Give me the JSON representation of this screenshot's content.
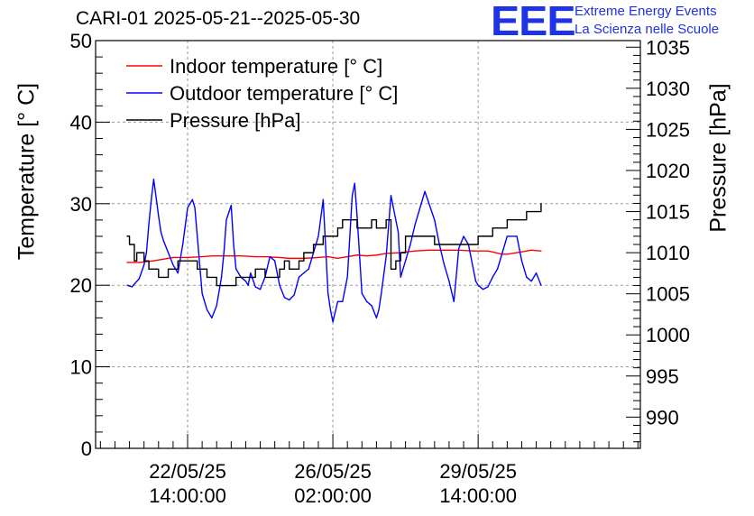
{
  "header": {
    "title": "CARI-01 2025-05-21--2025-05-30",
    "logo_text": "EEE",
    "brand_line1": "Extreme Energy Events",
    "brand_line2": "La Scienza nelle Scuole"
  },
  "colors": {
    "indoor": "#ff0000",
    "outdoor": "#0000ff",
    "pressure": "#000000",
    "brand": "#1e32e6",
    "grid": "#999999"
  },
  "chart_data": {
    "type": "line",
    "title": "CARI-01 2025-05-21--2025-05-30",
    "ylabel": "Temperature [° C]",
    "y2label": "Pressure [hPa]",
    "ylim": [
      0,
      50
    ],
    "y2lim": [
      986.2,
      1035.8
    ],
    "xlim_hours": [
      0,
      225
    ],
    "x_origin": "2025-05-21 00:00",
    "x_ticks": [
      {
        "hour": 38,
        "line1": "22/05/25",
        "line2": "14:00:00"
      },
      {
        "hour": 98,
        "line1": "26/05/25",
        "line2": "02:00:00"
      },
      {
        "hour": 158,
        "line1": "29/05/25",
        "line2": "14:00:00"
      }
    ],
    "y_ticks": [
      0,
      10,
      20,
      30,
      40,
      50
    ],
    "y2_ticks": [
      990,
      995,
      1000,
      1005,
      1010,
      1015,
      1020,
      1025,
      1030,
      1035
    ],
    "legend": {
      "position": "top-left",
      "entries": [
        "Indoor temperature [° C]",
        "Outdoor temperature [° C]",
        "Pressure [hPa]"
      ]
    },
    "series": [
      {
        "name": "Indoor temperature [° C]",
        "axis": "left",
        "x": [
          13,
          18,
          24,
          28,
          32,
          38,
          44,
          48,
          54,
          60,
          66,
          70,
          76,
          80,
          86,
          92,
          96,
          100,
          104,
          108,
          112,
          116,
          120,
          126,
          132,
          138,
          144,
          150,
          156,
          162,
          168,
          170,
          174,
          180,
          184
        ],
        "values": [
          22.8,
          22.8,
          23.0,
          23.2,
          23.4,
          23.4,
          23.5,
          23.6,
          23.6,
          23.6,
          23.5,
          23.5,
          23.4,
          23.3,
          23.3,
          23.4,
          23.5,
          23.3,
          23.5,
          23.7,
          23.6,
          23.7,
          23.9,
          24.0,
          24.2,
          24.3,
          24.3,
          24.3,
          24.2,
          24.2,
          23.8,
          23.8,
          24.0,
          24.3,
          24.2
        ]
      },
      {
        "name": "Outdoor temperature [° C]",
        "axis": "left",
        "x": [
          13,
          15,
          18,
          20,
          21,
          22,
          23,
          24,
          26,
          27,
          28,
          30,
          32,
          34,
          36,
          38,
          40,
          41,
          42,
          44,
          46,
          48,
          50,
          52,
          53,
          54,
          56,
          57,
          58,
          60,
          62,
          63,
          64,
          66,
          68,
          70,
          72,
          74,
          76,
          78,
          80,
          82,
          84,
          86,
          88,
          90,
          92,
          94,
          96,
          97,
          98,
          100,
          102,
          104,
          106,
          107,
          108,
          110,
          112,
          114,
          116,
          117,
          118,
          120,
          122,
          124,
          125,
          126,
          128,
          130,
          132,
          136,
          140,
          142,
          144,
          146,
          148,
          150,
          152,
          154,
          156,
          157,
          158,
          160,
          162,
          164,
          166,
          168,
          170,
          172,
          174,
          176,
          178,
          180,
          182,
          184
        ],
        "values": [
          20.0,
          19.8,
          20.8,
          22.5,
          24.0,
          27.5,
          30.5,
          33.0,
          28.5,
          26.5,
          25.5,
          24.0,
          22.5,
          21.5,
          25.0,
          29.5,
          30.5,
          29.5,
          26.0,
          19.0,
          17.0,
          16.0,
          17.5,
          21.0,
          24.0,
          28.0,
          29.8,
          25.0,
          22.0,
          21.0,
          20.5,
          20.0,
          21.5,
          19.8,
          19.5,
          21.0,
          23.5,
          23.0,
          20.0,
          18.5,
          18.2,
          18.8,
          21.0,
          21.5,
          22.0,
          24.0,
          26.0,
          30.5,
          19.0,
          17.0,
          15.5,
          18.0,
          18.0,
          21.0,
          31.0,
          32.5,
          28.5,
          19.0,
          18.0,
          17.5,
          16.0,
          17.0,
          19.0,
          23.5,
          31.0,
          28.0,
          26.5,
          21.0,
          23.0,
          25.0,
          27.5,
          31.5,
          28.0,
          25.0,
          22.5,
          20.5,
          18.0,
          24.5,
          26.0,
          25.0,
          22.0,
          20.5,
          20.0,
          19.5,
          19.8,
          21.0,
          22.0,
          24.0,
          26.0,
          26.0,
          26.0,
          23.0,
          21.0,
          20.5,
          21.5,
          20.0
        ]
      },
      {
        "name": "Pressure [hPa]",
        "axis": "right",
        "x": [
          13,
          14,
          16,
          17,
          20,
          22,
          24,
          26,
          28,
          30,
          34,
          38,
          42,
          44,
          46,
          48,
          50,
          54,
          56,
          58,
          60,
          64,
          66,
          68,
          70,
          74,
          76,
          78,
          80,
          82,
          84,
          86,
          88,
          90,
          92,
          94,
          96,
          98,
          100,
          102,
          106,
          108,
          110,
          112,
          114,
          116,
          118,
          120,
          122,
          124,
          126,
          128,
          130,
          132,
          136,
          140,
          144,
          148,
          152,
          156,
          158,
          160,
          162,
          164,
          166,
          168,
          170,
          172,
          174,
          176,
          178,
          180,
          182,
          184
        ],
        "values": [
          1012,
          1011,
          1009,
          1010,
          1009,
          1008,
          1008,
          1007,
          1007,
          1008,
          1009,
          1009,
          1008,
          1008,
          1007,
          1007,
          1006,
          1006,
          1006,
          1007,
          1007,
          1007,
          1008,
          1008,
          1007,
          1007,
          1008,
          1009,
          1008,
          1008,
          1009,
          1010,
          1010,
          1011,
          1011,
          1012,
          1012,
          1012,
          1013,
          1014,
          1014,
          1013,
          1013,
          1013,
          1014,
          1013,
          1013,
          1014,
          1008,
          1009,
          1010,
          1012,
          1012,
          1012,
          1012,
          1011,
          1011,
          1011,
          1011,
          1011,
          1012,
          1012,
          1012,
          1013,
          1013,
          1013,
          1014,
          1014,
          1014,
          1014,
          1015,
          1015,
          1015,
          1016
        ]
      }
    ]
  }
}
